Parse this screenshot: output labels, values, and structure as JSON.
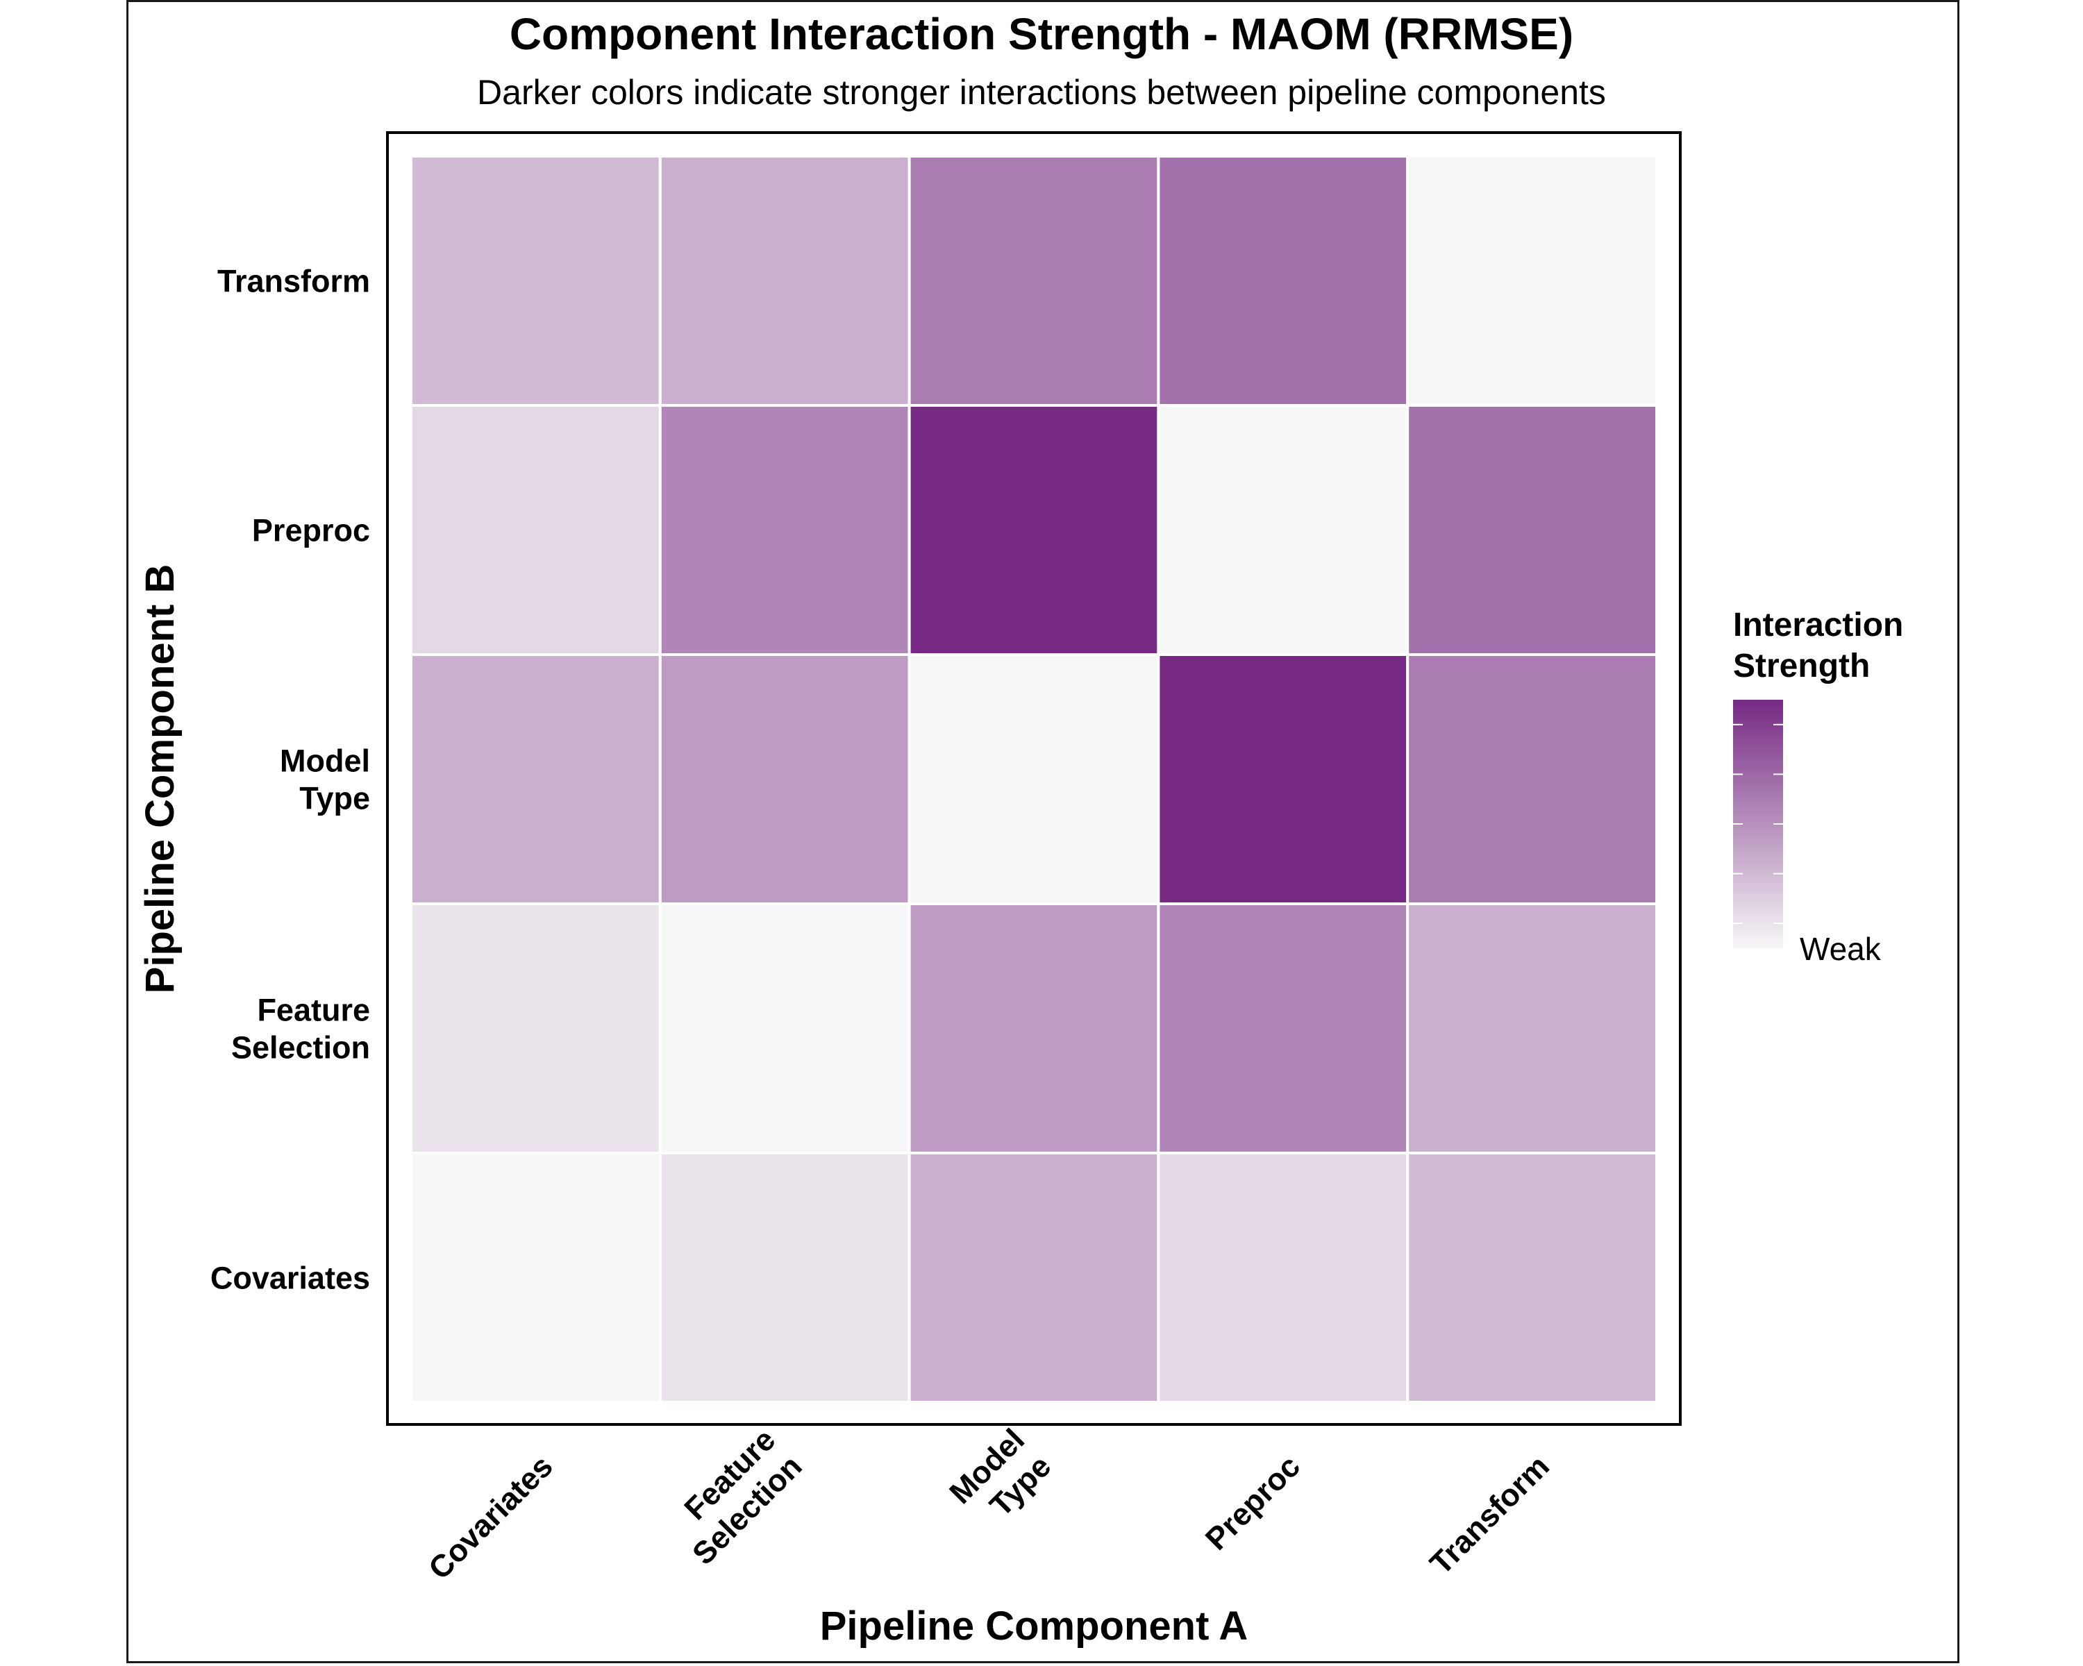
{
  "chart_data": {
    "type": "heatmap",
    "title": "Component Interaction Strength - MAOM (RRMSE)",
    "subtitle": "Darker colors indicate stronger interactions between pipeline components",
    "xlabel": "Pipeline Component A",
    "ylabel": "Pipeline Component B",
    "x_categories": [
      [
        "Covariates"
      ],
      [
        "Feature",
        "Selection"
      ],
      [
        "Model",
        "Type"
      ],
      [
        "Preproc"
      ],
      [
        "Transform"
      ]
    ],
    "y_categories": [
      [
        "Covariates"
      ],
      [
        "Feature",
        "Selection"
      ],
      [
        "Model",
        "Type"
      ],
      [
        "Preproc"
      ],
      [
        "Transform"
      ]
    ],
    "values": [
      [
        0.0,
        0.1,
        0.35,
        0.15,
        0.3
      ],
      [
        0.1,
        0.0,
        0.45,
        0.55,
        0.35
      ],
      [
        0.35,
        0.45,
        0.0,
        1.0,
        0.6
      ],
      [
        0.15,
        0.55,
        1.0,
        0.0,
        0.65
      ],
      [
        0.3,
        0.35,
        0.6,
        0.65,
        0.0
      ]
    ],
    "value_range": [
      0,
      1
    ],
    "color_low": "#f7f7f7",
    "color_high": "#762a83",
    "grid": false,
    "legend": {
      "title": [
        "Interaction",
        "Strength"
      ],
      "labels": [
        "Weak"
      ],
      "placement": "right"
    }
  }
}
